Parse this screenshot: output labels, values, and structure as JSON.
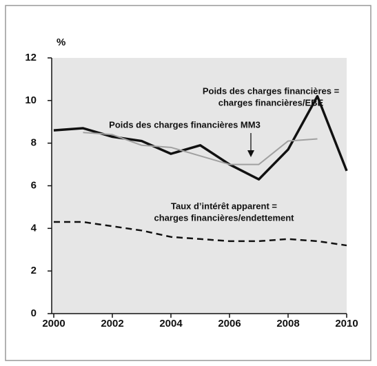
{
  "chart_data": {
    "type": "line",
    "y_label": "%",
    "x": [
      2000,
      2001,
      2002,
      2003,
      2004,
      2005,
      2006,
      2007,
      2008,
      2009,
      2010
    ],
    "xlim": [
      2000,
      2010
    ],
    "xticks": [
      2000,
      2002,
      2004,
      2006,
      2008,
      2010
    ],
    "ylim": [
      0,
      12
    ],
    "yticks": [
      0,
      2,
      4,
      6,
      8,
      10,
      12
    ],
    "series": [
      {
        "color": "#111111",
        "style": "solid",
        "width": 3.5,
        "values": [
          8.6,
          8.7,
          8.3,
          8.1,
          7.5,
          7.9,
          7.0,
          6.3,
          7.7,
          10.2,
          6.7
        ]
      },
      {
        "color": "#a0a0a0",
        "style": "solid",
        "width": 2,
        "values": [
          null,
          8.5,
          8.4,
          7.9,
          7.8,
          7.4,
          7.0,
          7.0,
          8.1,
          8.2,
          null
        ]
      },
      {
        "color": "#111111",
        "style": "dashed",
        "width": 2.5,
        "values": [
          4.3,
          4.3,
          4.1,
          3.9,
          3.6,
          3.5,
          3.4,
          3.4,
          3.5,
          3.4,
          3.2
        ]
      }
    ],
    "annotations": [
      {
        "lines": [
          "Poids des charges financières =",
          "charges financières/EBE"
        ]
      },
      {
        "lines": [
          "Poids des charges financières MM3"
        ]
      },
      {
        "lines": [
          "Taux d’intérêt apparent =",
          "charges financières/endettement"
        ]
      }
    ]
  }
}
